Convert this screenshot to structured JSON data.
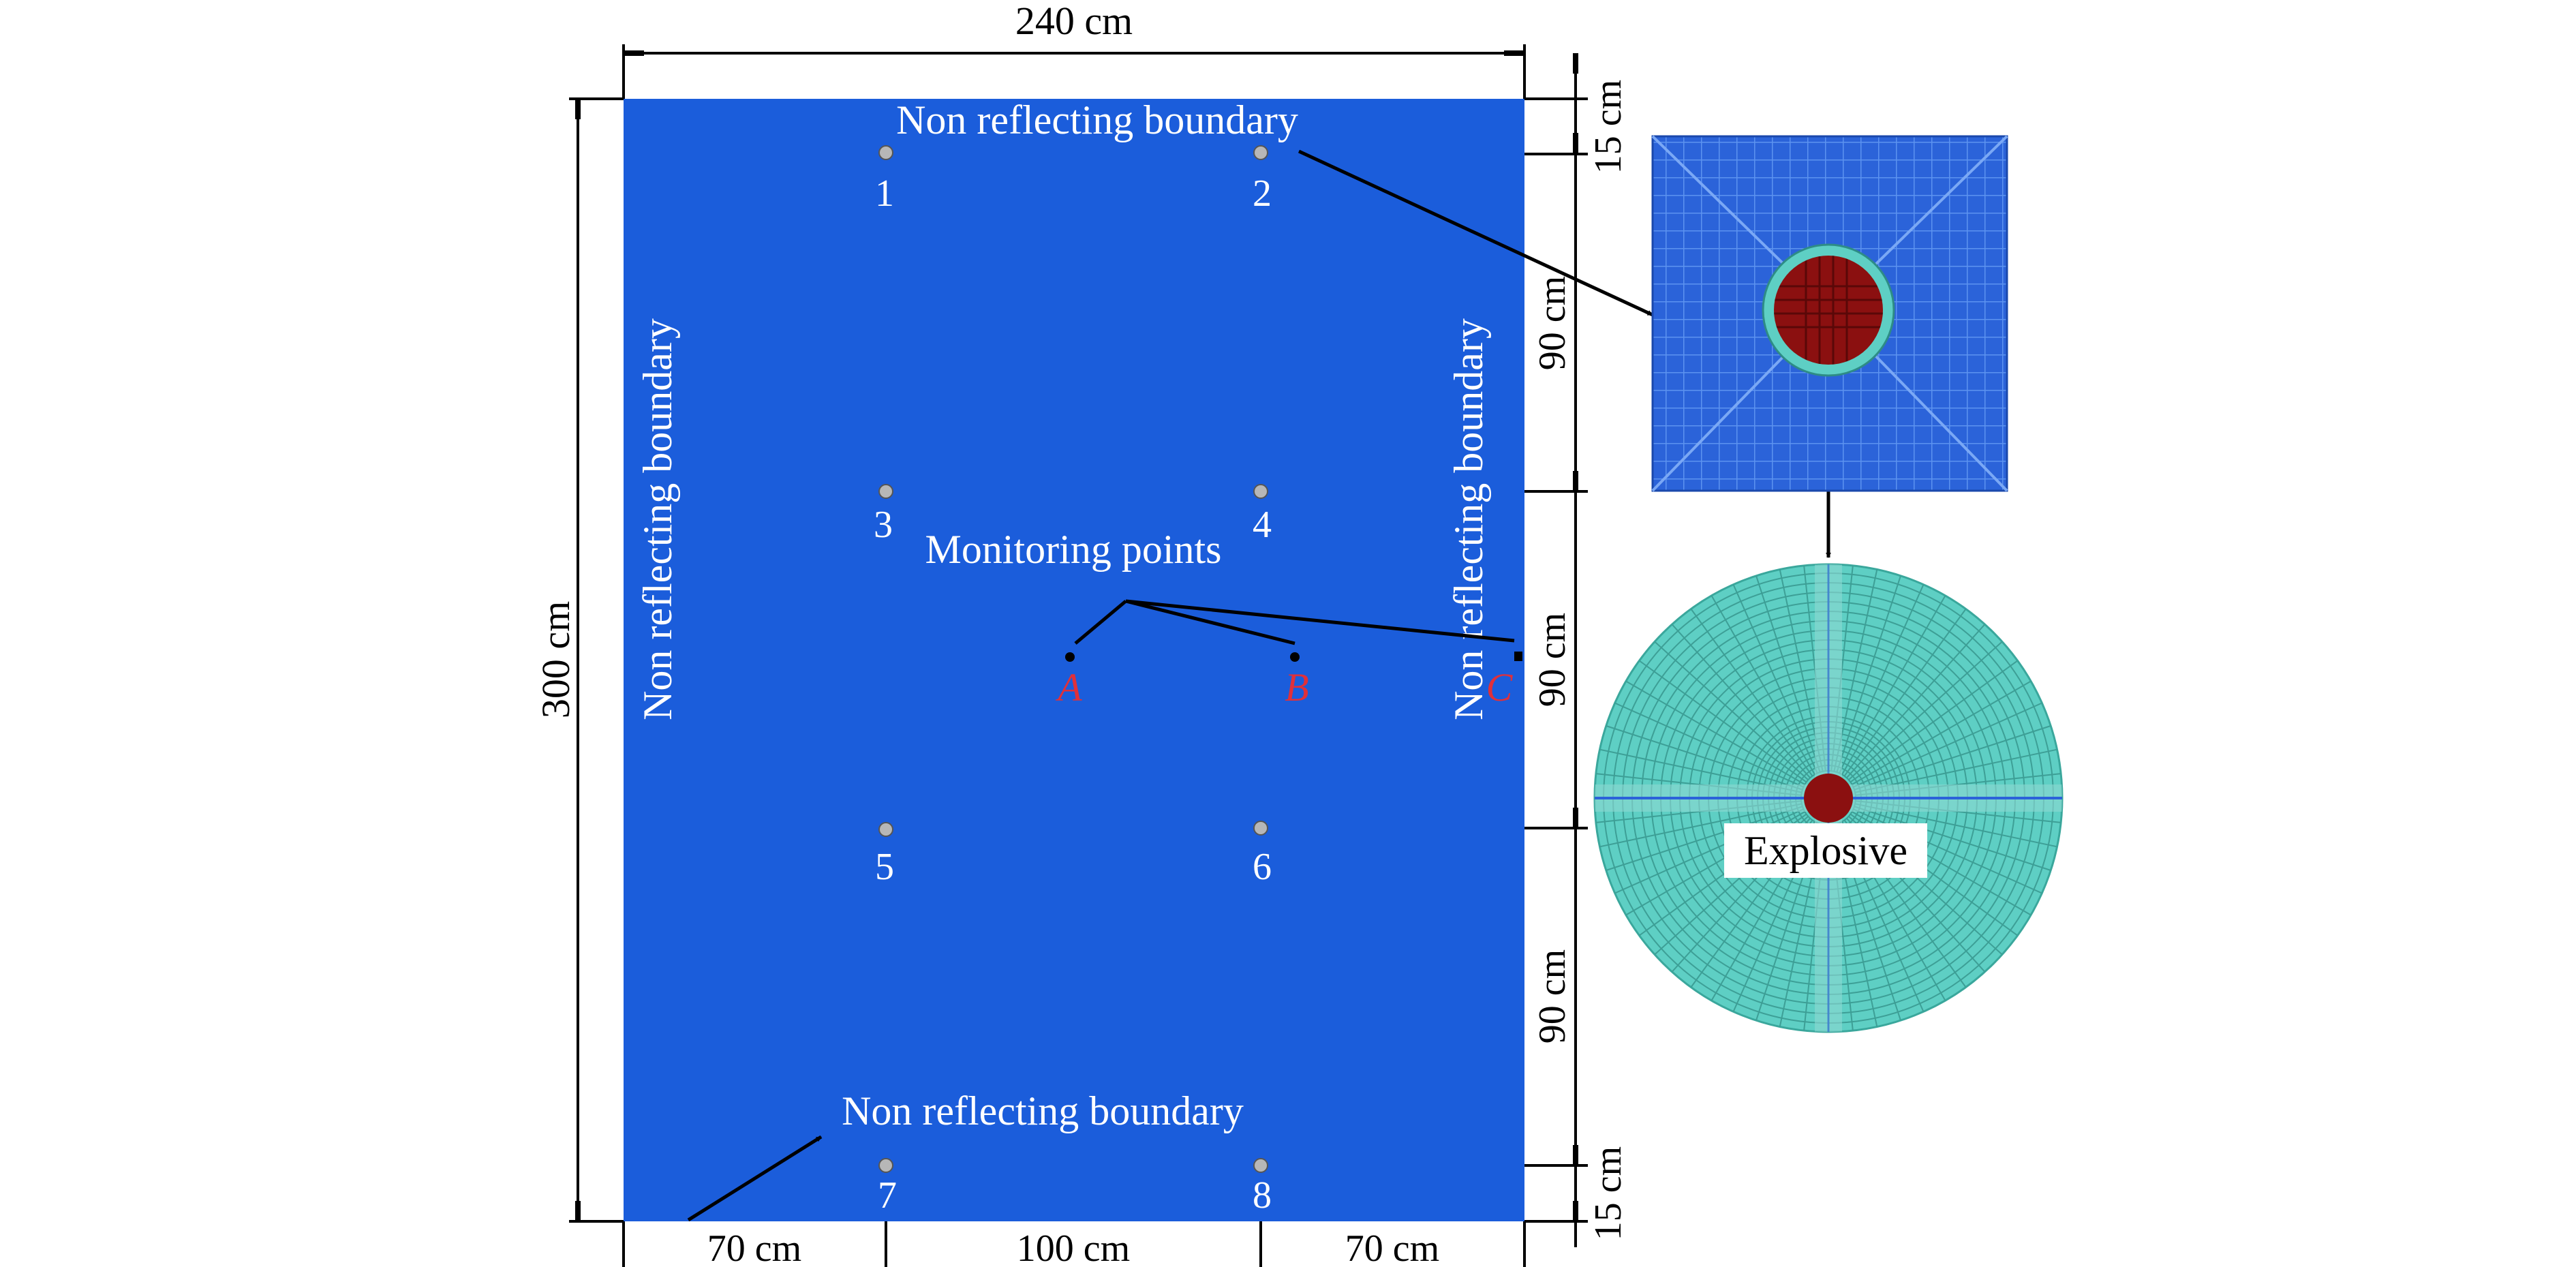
{
  "colors": {
    "model_fill": "#1b5ddb",
    "boundary_text": "#ffffff",
    "monitor_label": "#e0303a",
    "explosive": "#8b1010",
    "mesh_cyan": "#5ecfc4",
    "dimension_line": "#000000"
  },
  "dimensions": {
    "top_width": "240 cm",
    "left_height": "300 cm",
    "right": [
      "15 cm",
      "90 cm",
      "90 cm",
      "90 cm",
      "15 cm"
    ],
    "bottom": [
      "70 cm",
      "100 cm",
      "70 cm"
    ]
  },
  "boundary_labels": {
    "top": "Non reflecting boundary",
    "bottom": "Non reflecting boundary",
    "left": "Non reflecting boundary",
    "right": "Non reflecting boundary"
  },
  "boreholes": [
    "1",
    "2",
    "3",
    "4",
    "5",
    "6",
    "7",
    "8"
  ],
  "monitoring": {
    "title": "Monitoring points",
    "points": [
      "A",
      "B",
      "C"
    ]
  },
  "explosive_label": "Explosive",
  "icons": [
    "borehole-marker-icon",
    "arrow-head-icon"
  ]
}
